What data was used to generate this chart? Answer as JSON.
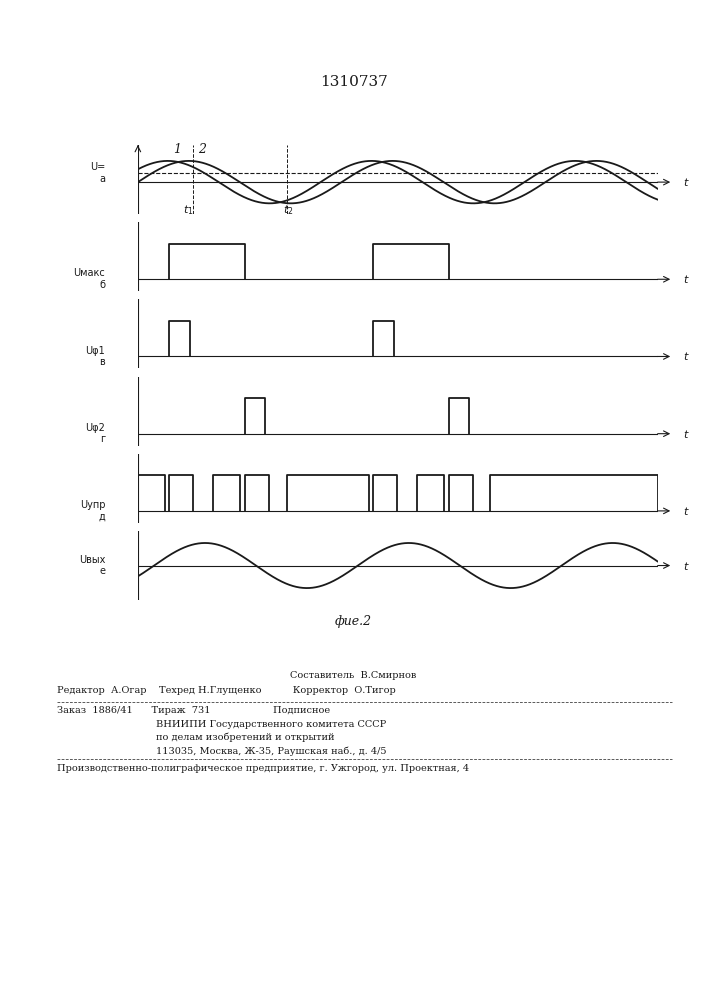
{
  "title": "1310737",
  "fig_caption": "фие.2",
  "line_color": "#1a1a1a",
  "T": 6.2831853,
  "wave1_phase": 0.0,
  "wave2_phase": 0.65,
  "wave_amplitude": 1.0,
  "dc_level": 0.42,
  "output_amplitude": 0.85,
  "label_a": "U=\na",
  "label_b": "Uмакс\nб",
  "label_v": "Uφ1\nв",
  "label_g": "Uφ2\nг",
  "label_d": "Uупр\nд",
  "label_e": "Uвых\ne",
  "footer_line1_center": "Составитель  В.Смирнов",
  "footer_line2": "Редактор  А.Огар    Техред Н.Глущенко          Корректор  О.Тигор",
  "footer_order": "Заказ  1886/41      Тираж  731                    Подписное",
  "footer_vniip1": "ВНИИПИ Государственного комитета СССР",
  "footer_vniip2": "по делам изобретений и открытий",
  "footer_vniip3": "113035, Москва, Ж-35, Раушская наб., д. 4/5",
  "footer_bottom": "Производственно-полиграфическое предприятие, г. Ужгород, ул. Проектная, 4"
}
